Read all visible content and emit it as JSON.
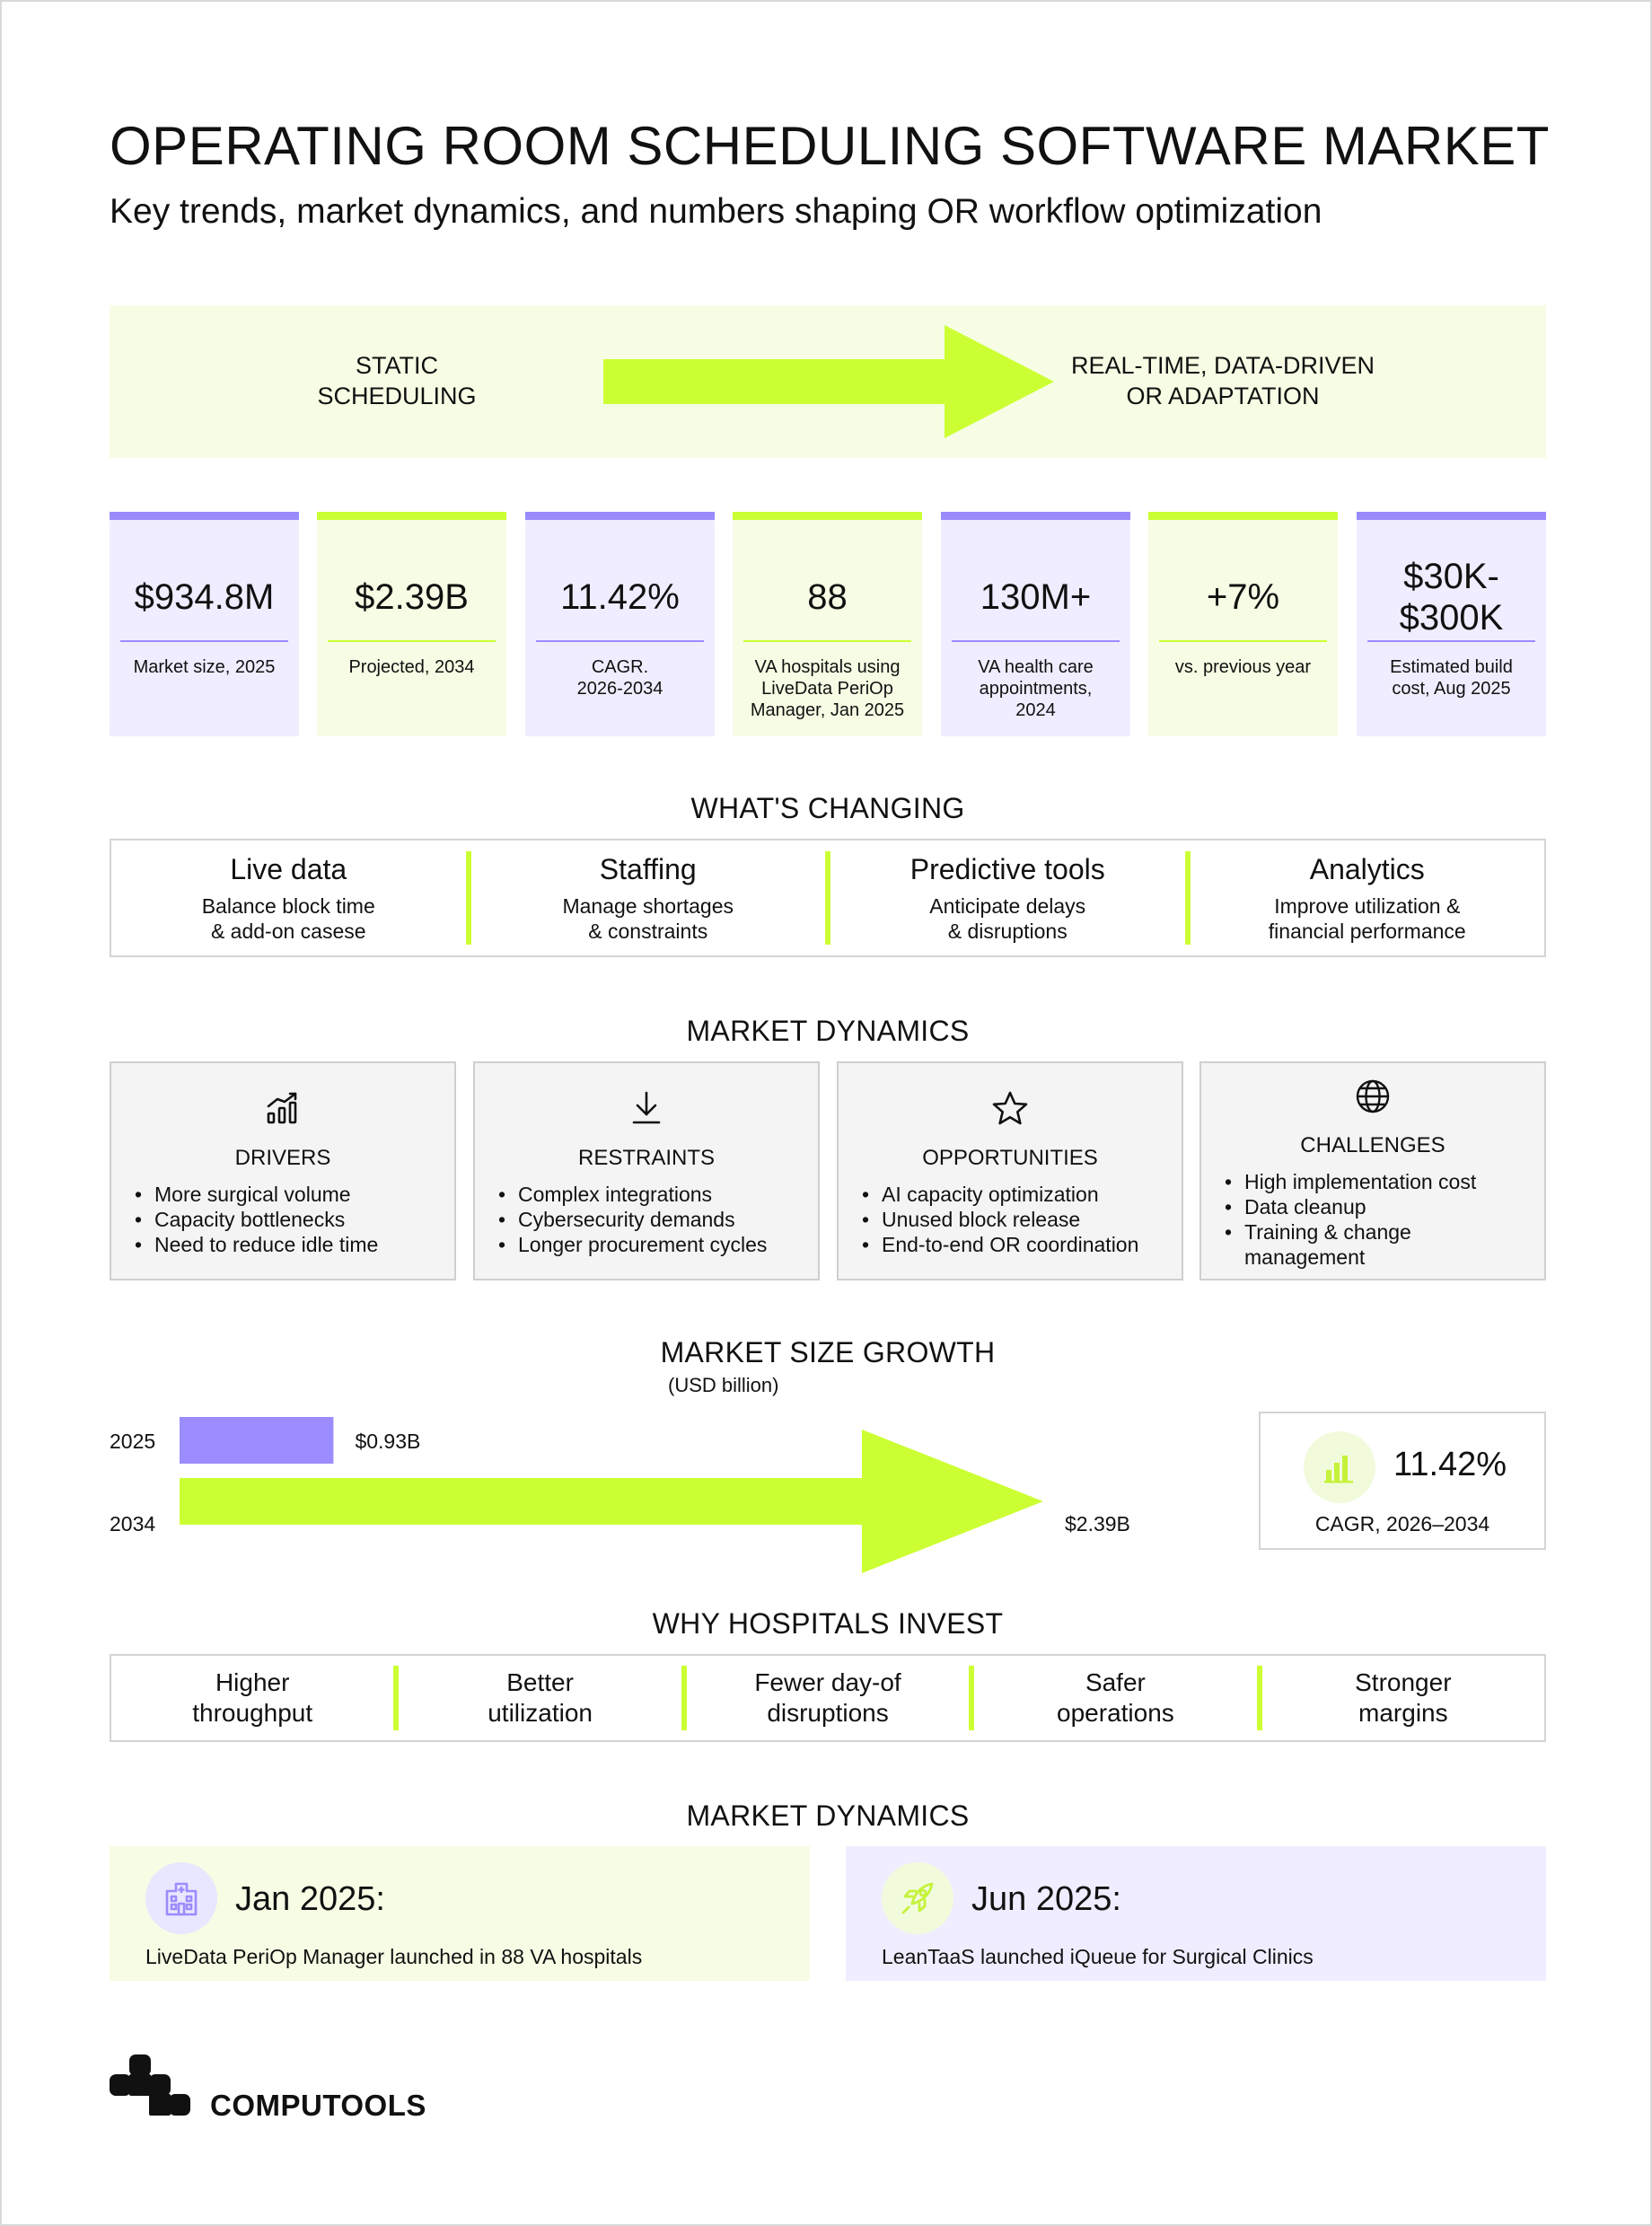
{
  "header": {
    "title": "OPERATING ROOM SCHEDULING SOFTWARE MARKET",
    "subtitle": "Key trends, market dynamics, and numbers shaping OR workflow optimization"
  },
  "transition": {
    "from_line1": "STATIC",
    "from_line2": "SCHEDULING",
    "to_line1": "REAL-TIME, DATA-DRIVEN",
    "to_line2": "OR ADAPTATION",
    "colors": {
      "arrow": "#ccff33",
      "background": "#f6fde4"
    }
  },
  "stats": [
    {
      "value": "$934.8M",
      "label": "Market size, 2025"
    },
    {
      "value": "$2.39B",
      "label": "Projected, 2034"
    },
    {
      "value": "11.42%",
      "label": "CAGR.\n2026-2034"
    },
    {
      "value": "88",
      "label": "VA hospitals using\nLiveData PeriOp\nManager, Jan 2025"
    },
    {
      "value": "130M+",
      "label": "VA health care\nappointments,\n2024"
    },
    {
      "value": "+7%",
      "label": "vs. previous year"
    },
    {
      "value": "$30K-\n$300K",
      "label": "Estimated build\ncost, Aug 2025"
    }
  ],
  "changing": {
    "title": "WHAT'S CHANGING",
    "items": [
      {
        "head": "Live data",
        "text": "Balance block time\n& add-on casese"
      },
      {
        "head": "Staffing",
        "text": "Manage shortages\n& constraints"
      },
      {
        "head": "Predictive tools",
        "text": "Anticipate delays\n& disruptions"
      },
      {
        "head": "Analytics",
        "text": "Improve utilization &\nfinancial performance"
      }
    ]
  },
  "dynamics": {
    "title": "MARKET DYNAMICS",
    "cards": [
      {
        "icon": "growth-chart-icon",
        "title": "DRIVERS",
        "items": [
          "More surgical volume",
          "Capacity bottlenecks",
          "Need to reduce idle time"
        ]
      },
      {
        "icon": "download-arrow-icon",
        "title": "RESTRAINTS",
        "items": [
          "Complex integrations",
          "Cybersecurity demands",
          "Longer procurement cycles"
        ]
      },
      {
        "icon": "star-icon",
        "title": "OPPORTUNITIES",
        "items": [
          "AI capacity optimization",
          "Unused block release",
          "End-to-end OR coordination"
        ]
      },
      {
        "icon": "globe-icon",
        "title": "CHALLENGES",
        "items": [
          "High implementation cost",
          "Data cleanup",
          "Training & change management"
        ]
      }
    ]
  },
  "growth": {
    "title": "MARKET SIZE GROWTH",
    "unit": "(USD billion)",
    "cagr_value": "11.42%",
    "cagr_label": "CAGR, 2026–2034"
  },
  "chart_data": {
    "type": "bar",
    "orientation": "horizontal",
    "title": "MARKET SIZE GROWTH",
    "subtitle": "(USD billion)",
    "categories": [
      "2025",
      "2034"
    ],
    "values": [
      0.93,
      2.39
    ],
    "data_labels": [
      "$0.93B",
      "$2.39B"
    ],
    "colors": [
      "#9b8cff",
      "#ccff33"
    ],
    "grid": false
  },
  "invest": {
    "title": "WHY HOSPITALS INVEST",
    "items": [
      "Higher\nthroughput",
      "Better\nutilization",
      "Fewer day-of\ndisruptions",
      "Safer\noperations",
      "Stronger\nmargins"
    ]
  },
  "events": {
    "title": "MARKET DYNAMICS",
    "items": [
      {
        "icon": "hospital-icon",
        "date": "Jan 2025:",
        "text": "LiveData PeriOp Manager launched in 88 VA hospitals"
      },
      {
        "icon": "rocket-icon",
        "date": "Jun 2025:",
        "text": "LeanTaaS launched iQueue for Surgical Clinics"
      }
    ]
  },
  "footer": {
    "brand": "COMPUTOOLS"
  }
}
